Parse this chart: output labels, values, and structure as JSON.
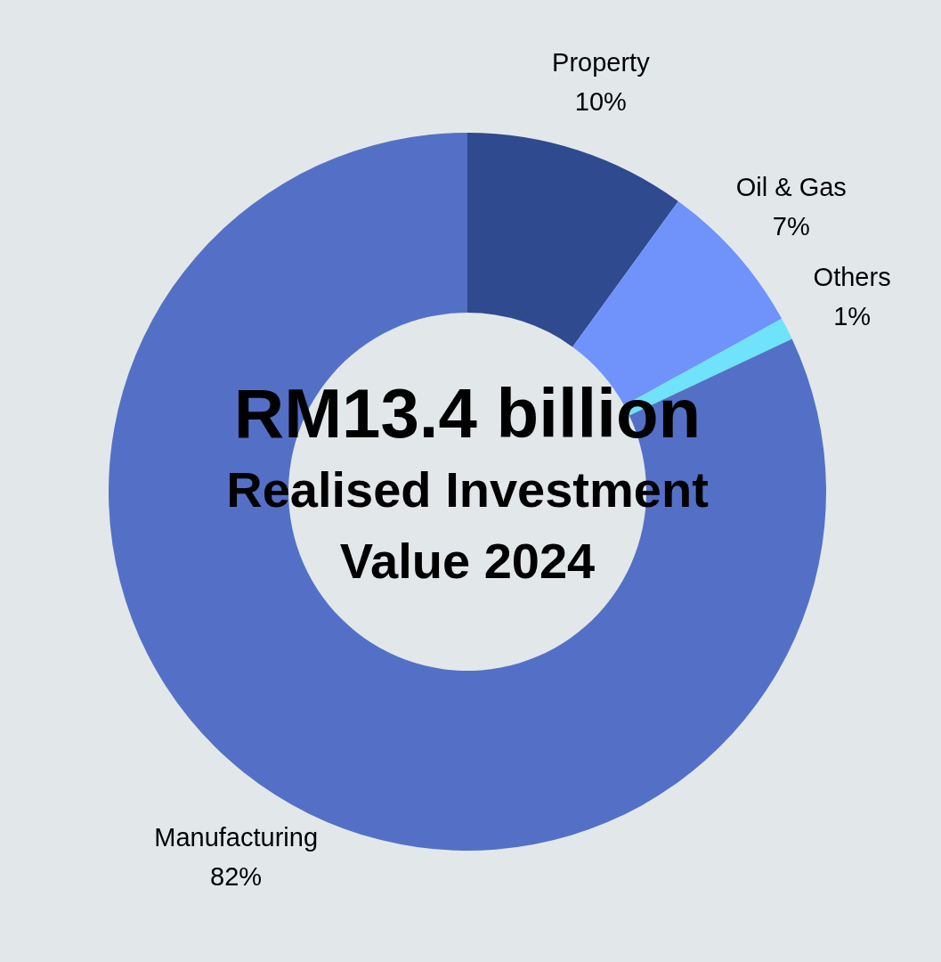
{
  "chart_data": {
    "type": "donut",
    "title": "RM13.4 billion",
    "subtitle": "Realised Investment Value 2024",
    "categories": [
      "Property",
      "Oil & Gas",
      "Others",
      "Manufacturing"
    ],
    "values": [
      10,
      7,
      1,
      82
    ],
    "colors": [
      "#2f4a8e",
      "#6f93fb",
      "#6ee3f9",
      "#5470c6"
    ],
    "value_labels": [
      "10%",
      "7%",
      "1%",
      "82%"
    ]
  }
}
